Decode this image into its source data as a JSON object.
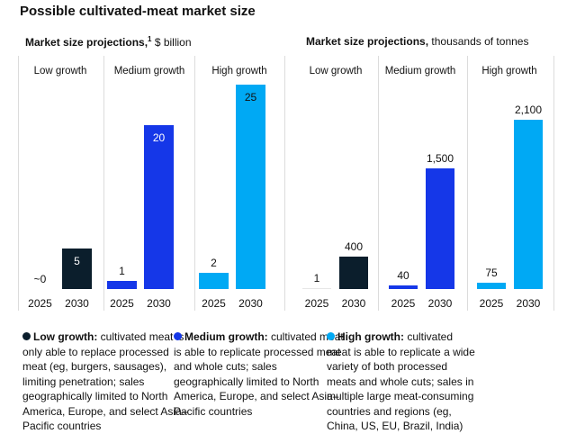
{
  "title": "Possible cultivated-meat market size",
  "colors": {
    "low": "#0b1e2c",
    "medium": "#1537e8",
    "high": "#00a9f4"
  },
  "chart_data": [
    {
      "type": "bar",
      "title_bold": "Market size projections,",
      "title_footnote": "1",
      "title_unit": " $ billion",
      "categories": [
        "2025",
        "2030"
      ],
      "ylim": [
        0,
        25
      ],
      "grid": false,
      "groups": [
        {
          "name": "Low growth",
          "key": "low",
          "values": [
            0,
            5
          ],
          "labels": [
            "~0",
            "5"
          ]
        },
        {
          "name": "Medium growth",
          "key": "medium",
          "values": [
            1,
            20
          ],
          "labels": [
            "1",
            "20"
          ]
        },
        {
          "name": "High growth",
          "key": "high",
          "values": [
            2,
            25
          ],
          "labels": [
            "2",
            "25"
          ]
        }
      ]
    },
    {
      "type": "bar",
      "title_bold": "Market size projections,",
      "title_footnote": "",
      "title_unit": " thousands of tonnes",
      "categories": [
        "2025",
        "2030"
      ],
      "ylim": [
        0,
        2100
      ],
      "grid": false,
      "groups": [
        {
          "name": "Low growth",
          "key": "low",
          "values": [
            1,
            400
          ],
          "labels": [
            "1",
            "400"
          ]
        },
        {
          "name": "Medium growth",
          "key": "medium",
          "values": [
            40,
            1500
          ],
          "labels": [
            "40",
            "1,500"
          ]
        },
        {
          "name": "High growth",
          "key": "high",
          "values": [
            75,
            2100
          ],
          "labels": [
            "75",
            "2,100"
          ]
        }
      ]
    }
  ],
  "legend": [
    {
      "key": "low",
      "label": "Low growth:",
      "text": " cultivated meat is only able to replace processed meat (eg, burgers, sausages), limiting penetration; sales geographically limited to North America, Europe, and select Asia–Pacific countries"
    },
    {
      "key": "medium",
      "label": "Medium growth:",
      "text": " cultivated meat is able to replicate processed meat and whole cuts; sales geographically limited to North America, Europe, and select Asia–Pacific countries"
    },
    {
      "key": "high",
      "label": "High growth:",
      "text": " cultivated meat is able to replicate a wide variety of both processed meats and whole cuts; sales in multiple large meat-consuming countries and regions (eg, China, US, EU, Brazil, India)"
    }
  ]
}
